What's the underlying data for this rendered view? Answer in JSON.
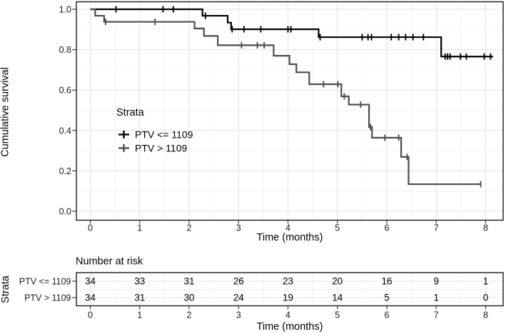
{
  "chart_data": {
    "type": "line",
    "subtype": "kaplan-meier-step-survival",
    "title": "",
    "xlabel": "Time (months)",
    "ylabel": "Cumulative survival",
    "legend_title": "Strata",
    "legend_position": "inside-middle-left",
    "grid": "major+minor",
    "xlim": [
      0,
      8.3
    ],
    "ylim": [
      0,
      1
    ],
    "x_ticks": [
      0,
      1,
      2,
      3,
      4,
      5,
      6,
      7,
      8
    ],
    "y_ticks": [
      1.0,
      0.8,
      0.6,
      0.4,
      0.2,
      0.0
    ],
    "y_tick_labels": [
      "1.0",
      "0.8",
      "0.6",
      "0.4",
      "0.2",
      "0.0"
    ],
    "series": [
      {
        "name": "PTV <= 1109",
        "color": "#000000",
        "steps": [
          [
            0,
            1.0
          ],
          [
            2.27,
            0.968
          ],
          [
            2.78,
            0.934
          ],
          [
            2.85,
            0.901
          ],
          [
            4.62,
            0.862
          ],
          [
            7.1,
            0.766
          ]
        ],
        "end_time": 8.15,
        "censor_times": [
          0.52,
          1.47,
          1.68,
          2.33,
          2.87,
          3.11,
          3.45,
          4.0,
          4.06,
          4.65,
          5.5,
          5.62,
          5.69,
          6.09,
          6.24,
          6.38,
          6.53,
          6.74,
          7.18,
          7.23,
          7.28,
          7.49,
          7.61,
          7.97,
          8.1
        ]
      },
      {
        "name": "PTV > 1109",
        "color": "#4d4d4d",
        "steps": [
          [
            0,
            1.0
          ],
          [
            0.1,
            0.968
          ],
          [
            0.28,
            0.938
          ],
          [
            2.11,
            0.905
          ],
          [
            2.3,
            0.868
          ],
          [
            2.58,
            0.822
          ],
          [
            3.71,
            0.77
          ],
          [
            4.03,
            0.728
          ],
          [
            4.17,
            0.688
          ],
          [
            4.43,
            0.629
          ],
          [
            5.08,
            0.569
          ],
          [
            5.23,
            0.528
          ],
          [
            5.64,
            0.417
          ],
          [
            5.7,
            0.364
          ],
          [
            6.29,
            0.269
          ],
          [
            6.44,
            0.134
          ]
        ],
        "end_time": 7.9,
        "censor_times": [
          0.31,
          1.31,
          3.06,
          3.38,
          3.52,
          4.72,
          5.01,
          5.14,
          5.47,
          5.67,
          5.96,
          6.24,
          6.41,
          7.9
        ]
      }
    ],
    "risk_table": {
      "title": "Number at risk",
      "ylabel": "Strata",
      "xlabel": "Time (months)",
      "times": [
        0,
        1,
        2,
        3,
        4,
        5,
        6,
        7,
        8
      ],
      "rows": [
        {
          "label": "PTV <= 1109",
          "counts": [
            34,
            33,
            31,
            26,
            23,
            20,
            16,
            9,
            1
          ]
        },
        {
          "label": "PTV > 1109",
          "counts": [
            34,
            31,
            30,
            24,
            19,
            14,
            5,
            1,
            0
          ]
        }
      ]
    }
  }
}
